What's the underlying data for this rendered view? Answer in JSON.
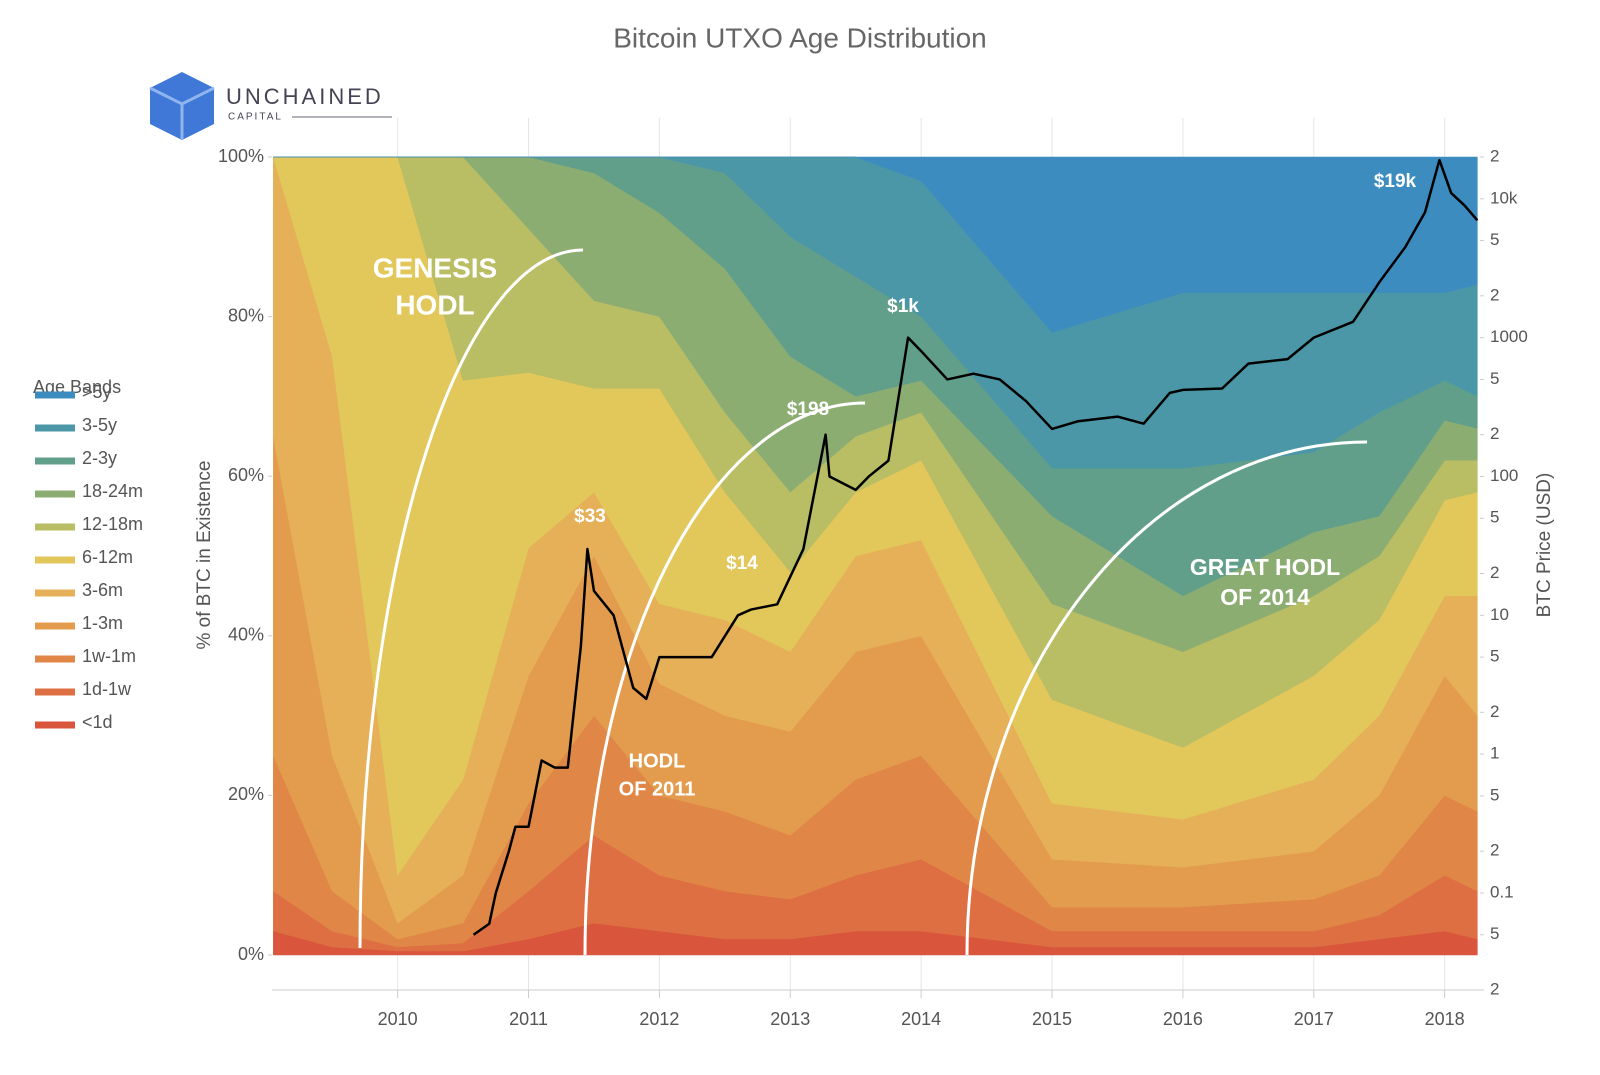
{
  "chart_data": {
    "type": "area",
    "stacked": true,
    "title": "Bitcoin UTXO Age Distribution",
    "logo": {
      "name": "UNCHAINED",
      "subtitle": "CAPITAL"
    },
    "y_label": "% of BTC in Existence",
    "y2_label": "BTC Price (USD)",
    "legend_title": "Age Bands",
    "legend_position": "left",
    "grid": true,
    "x": [
      2009.05,
      2009.5,
      2010.0,
      2010.5,
      2011.0,
      2011.5,
      2012.0,
      2012.5,
      2013.0,
      2013.5,
      2014.0,
      2015.0,
      2016.0,
      2017.0,
      2017.5,
      2018.0,
      2018.25
    ],
    "xlim": [
      2009.04,
      2018.27
    ],
    "xticks": [
      2010,
      2011,
      2012,
      2013,
      2014,
      2015,
      2016,
      2017,
      2018
    ],
    "ylim": [
      0,
      100
    ],
    "yticks": [
      {
        "value": 0,
        "label": "0%"
      },
      {
        "value": 20,
        "label": "20%"
      },
      {
        "value": 40,
        "label": "40%"
      },
      {
        "value": 60,
        "label": "60%"
      },
      {
        "value": 80,
        "label": "80%"
      },
      {
        "value": 100,
        "label": "100%"
      }
    ],
    "y2scale": "log",
    "y2lim": [
      0.02,
      20000
    ],
    "y2ticks": [
      {
        "value": 0.02,
        "label": "2"
      },
      {
        "value": 0.05,
        "label": "5"
      },
      0.1,
      {
        "value": 0.2,
        "label": "2"
      },
      {
        "value": 0.5,
        "label": "5"
      },
      1,
      2,
      5,
      10,
      {
        "value": 20,
        "label": "2"
      },
      {
        "value": 50,
        "label": "5"
      },
      100,
      {
        "value": 200,
        "label": "2"
      },
      {
        "value": 500,
        "label": "5"
      },
      1000,
      {
        "value": 2000,
        "label": "2"
      },
      {
        "value": 5000,
        "label": "5"
      },
      {
        "value": 10000,
        "label": "10k"
      },
      {
        "value": 20000,
        "label": "2"
      }
    ],
    "series": [
      {
        "name": ">5y",
        "color": "#3d8cbf",
        "values": [
          0,
          0,
          0,
          0,
          0,
          0,
          0,
          0,
          0,
          0,
          3,
          22,
          17,
          17,
          17,
          17,
          16
        ]
      },
      {
        "name": "3-5y",
        "color": "#4b97a7",
        "values": [
          0,
          0,
          0,
          0,
          0,
          0,
          0,
          2,
          10,
          15,
          17,
          17,
          22,
          20,
          15,
          11,
          14
        ]
      },
      {
        "name": "2-3y",
        "color": "#619f8b",
        "values": [
          0,
          0,
          0,
          0,
          0,
          2,
          7,
          12,
          15,
          15,
          8,
          6,
          16,
          10,
          13,
          5,
          4
        ]
      },
      {
        "name": "18-24m",
        "color": "#8cad72",
        "values": [
          0,
          0,
          0,
          0,
          9,
          16,
          13,
          18,
          17,
          5,
          4,
          11,
          7,
          8,
          5,
          5,
          4
        ]
      },
      {
        "name": "12-18m",
        "color": "#b9bd64",
        "values": [
          0,
          0,
          0,
          28,
          18,
          11,
          9,
          10,
          10,
          7,
          6,
          12,
          12,
          10,
          8,
          5,
          4
        ]
      },
      {
        "name": "6-12m",
        "color": "#e2c75b",
        "values": [
          0,
          25,
          90,
          50,
          22,
          13,
          27,
          16,
          10,
          8,
          10,
          13,
          9,
          13,
          12,
          12,
          13
        ]
      },
      {
        "name": "3-6m",
        "color": "#e5b057",
        "values": [
          35,
          50,
          6,
          12,
          16,
          8,
          10,
          12,
          10,
          12,
          12,
          7,
          6,
          9,
          10,
          10,
          15
        ]
      },
      {
        "name": "1-3m",
        "color": "#e39c4d",
        "values": [
          40,
          17,
          2,
          6,
          16,
          20,
          14,
          12,
          13,
          16,
          15,
          6,
          5,
          6,
          10,
          15,
          12
        ]
      },
      {
        "name": "1w-1m",
        "color": "#e08646",
        "values": [
          17,
          5,
          1,
          2.5,
          11,
          15,
          10,
          10,
          8,
          12,
          13,
          3,
          3,
          4,
          5,
          10,
          10
        ]
      },
      {
        "name": "1d-1w",
        "color": "#dd6f42",
        "values": [
          5,
          2,
          0.5,
          1,
          6,
          11,
          7,
          6,
          5,
          7,
          9,
          2,
          2,
          2,
          3,
          7,
          6
        ]
      },
      {
        "name": "<1d",
        "color": "#d9553c",
        "values": [
          3,
          1,
          0.5,
          0.5,
          2,
          4,
          3,
          2,
          2,
          3,
          3,
          1,
          1,
          1,
          2,
          3,
          2
        ]
      }
    ],
    "price_series": {
      "axis": "y2",
      "color": "#000000",
      "x": [
        2010.58,
        2010.7,
        2010.75,
        2010.85,
        2010.9,
        2011.0,
        2011.1,
        2011.2,
        2011.3,
        2011.4,
        2011.45,
        2011.5,
        2011.65,
        2011.8,
        2011.9,
        2012.0,
        2012.2,
        2012.4,
        2012.6,
        2012.7,
        2012.9,
        2013.1,
        2013.27,
        2013.3,
        2013.5,
        2013.6,
        2013.75,
        2013.9,
        2014.0,
        2014.2,
        2014.4,
        2014.6,
        2014.8,
        2015.0,
        2015.2,
        2015.5,
        2015.7,
        2015.9,
        2016.0,
        2016.3,
        2016.5,
        2016.8,
        2017.0,
        2017.3,
        2017.5,
        2017.7,
        2017.85,
        2017.96,
        2018.05,
        2018.15,
        2018.25
      ],
      "values": [
        0.05,
        0.06,
        0.1,
        0.2,
        0.3,
        0.3,
        0.9,
        0.8,
        0.8,
        6,
        30,
        15,
        10,
        3,
        2.5,
        5,
        5,
        5,
        10,
        11,
        12,
        30,
        200,
        100,
        80,
        100,
        130,
        1000,
        800,
        500,
        550,
        500,
        350,
        220,
        250,
        270,
        240,
        400,
        420,
        430,
        650,
        700,
        1000,
        1300,
        2500,
        4500,
        8000,
        19000,
        11000,
        9000,
        7000
      ]
    },
    "price_labels": [
      "$33",
      "$14",
      "$198",
      "$1k",
      "$19k"
    ],
    "annotations": [
      {
        "lines": [
          "GENESIS",
          "HODL"
        ]
      },
      {
        "lines": [
          "HODL",
          "OF 2011"
        ]
      },
      {
        "lines": [
          "GREAT HODL",
          "OF 2014"
        ]
      }
    ]
  }
}
